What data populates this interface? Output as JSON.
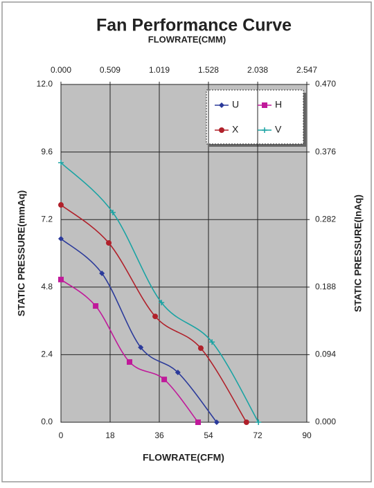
{
  "chart_data": {
    "type": "line",
    "title": "Fan Performance Curve",
    "x2label": "FLOWRATE(CMM)",
    "xlabel": "FLOWRATE(CFM)",
    "ylabel": "STATIC PRESSURE(mmAq)",
    "y2label": "STATIC PRESSURE(InAq)",
    "xlim": [
      0,
      90
    ],
    "xticks": [
      0,
      18,
      36,
      54,
      72,
      90
    ],
    "x2lim": [
      0,
      2.547
    ],
    "x2ticks": [
      {
        "value": 0,
        "label": "0.000"
      },
      {
        "value": 0.509,
        "label": "0.509"
      },
      {
        "value": 1.019,
        "label": "1.019"
      },
      {
        "value": 1.528,
        "label": "1.528"
      },
      {
        "value": 2.038,
        "label": "2.038"
      },
      {
        "value": 2.547,
        "label": "2.547"
      }
    ],
    "ylim": [
      0,
      12
    ],
    "yticks": [
      {
        "value": 0,
        "label": "0.0"
      },
      {
        "value": 2.4,
        "label": "2.4"
      },
      {
        "value": 4.8,
        "label": "4.8"
      },
      {
        "value": 7.2,
        "label": "7.2"
      },
      {
        "value": 9.6,
        "label": "9.6"
      },
      {
        "value": 12,
        "label": "12.0"
      }
    ],
    "y2lim": [
      0,
      0.47
    ],
    "y2ticks": [
      {
        "value": 0,
        "label": "0.000"
      },
      {
        "value": 0.094,
        "label": "0.094"
      },
      {
        "value": 0.188,
        "label": "0.188"
      },
      {
        "value": 0.282,
        "label": "0.282"
      },
      {
        "value": 0.376,
        "label": "0.376"
      },
      {
        "value": 0.47,
        "label": "0.470"
      }
    ],
    "grid": true,
    "legend": "upper right",
    "series": [
      {
        "name": "U",
        "color": "#2b3a9a",
        "marker": "diamond",
        "x": [
          0,
          15.0,
          29.2,
          42.8,
          57.0
        ],
        "values": [
          6.52,
          5.29,
          2.66,
          1.77,
          0
        ]
      },
      {
        "name": "H",
        "color": "#c0199a",
        "marker": "square",
        "x": [
          0,
          12.7,
          25.1,
          37.8,
          50.2
        ],
        "values": [
          5.07,
          4.13,
          2.14,
          1.52,
          0
        ]
      },
      {
        "name": "X",
        "color": "#b0202a",
        "marker": "circle",
        "x": [
          0,
          17.5,
          34.5,
          51.2,
          67.9
        ],
        "values": [
          7.72,
          6.37,
          3.76,
          2.63,
          0
        ]
      },
      {
        "name": "V",
        "color": "#1aa3a3",
        "marker": "plus",
        "x": [
          0,
          19.0,
          36.8,
          55.3,
          72.3
        ],
        "values": [
          9.22,
          7.45,
          4.25,
          2.85,
          0
        ]
      }
    ]
  }
}
